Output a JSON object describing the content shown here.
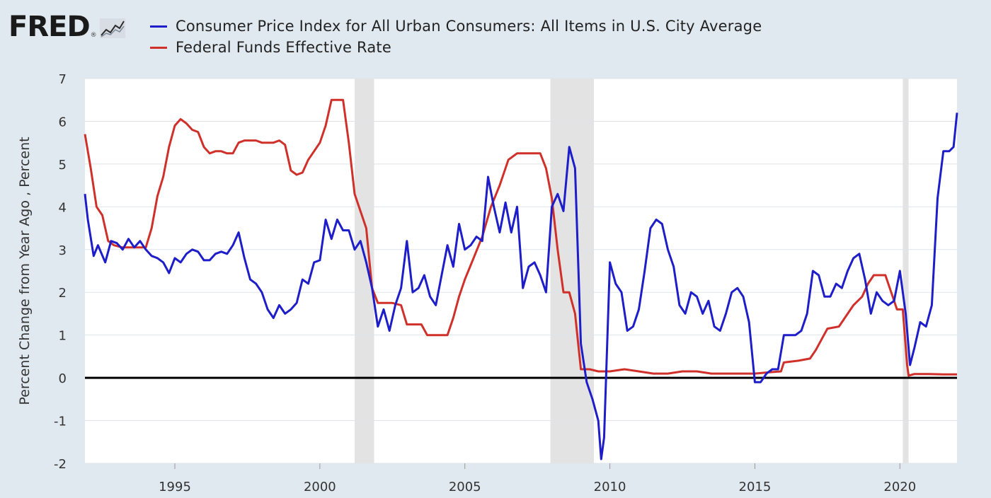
{
  "brand": {
    "logo_text": "FRED",
    "registered_mark": "®"
  },
  "colors": {
    "cpi": "#1d1dc9",
    "fed": "#d0302a",
    "background": "#e1e9f0",
    "plot_background": "#ffffff",
    "recession": "#e3e3e3",
    "zero_line": "#000000",
    "grid": "#dfe3e8"
  },
  "chart_data": {
    "type": "line",
    "ylabel": "Percent Change from Year Ago , Percent",
    "xlabel": "",
    "xlim": [
      1991.9,
      2021.97
    ],
    "ylim": [
      -2,
      7
    ],
    "yticks": [
      -2,
      -1,
      0,
      1,
      2,
      3,
      4,
      5,
      6,
      7
    ],
    "xticks": [
      1995,
      2000,
      2005,
      2010,
      2015,
      2020
    ],
    "grid": "horizontal",
    "legend_position": "top",
    "recessions": [
      [
        2001.2,
        2001.87
      ],
      [
        2007.95,
        2009.45
      ],
      [
        2020.1,
        2020.3
      ]
    ],
    "reference_line": 0,
    "series": [
      {
        "name": "Consumer Price Index for All Urban Consumers: All Items in U.S. City Average",
        "color": "#1d1dc9",
        "points": [
          [
            1991.9,
            4.3
          ],
          [
            1992.0,
            3.7
          ],
          [
            1992.2,
            2.85
          ],
          [
            1992.35,
            3.1
          ],
          [
            1992.6,
            2.7
          ],
          [
            1992.8,
            3.2
          ],
          [
            1993.0,
            3.15
          ],
          [
            1993.2,
            3.0
          ],
          [
            1993.4,
            3.25
          ],
          [
            1993.6,
            3.05
          ],
          [
            1993.8,
            3.2
          ],
          [
            1994.0,
            3.0
          ],
          [
            1994.2,
            2.85
          ],
          [
            1994.4,
            2.8
          ],
          [
            1994.6,
            2.7
          ],
          [
            1994.8,
            2.45
          ],
          [
            1995.0,
            2.8
          ],
          [
            1995.2,
            2.7
          ],
          [
            1995.4,
            2.9
          ],
          [
            1995.6,
            3.0
          ],
          [
            1995.8,
            2.95
          ],
          [
            1996.0,
            2.75
          ],
          [
            1996.2,
            2.75
          ],
          [
            1996.4,
            2.9
          ],
          [
            1996.6,
            2.95
          ],
          [
            1996.8,
            2.9
          ],
          [
            1997.0,
            3.1
          ],
          [
            1997.2,
            3.4
          ],
          [
            1997.4,
            2.8
          ],
          [
            1997.6,
            2.3
          ],
          [
            1997.8,
            2.2
          ],
          [
            1998.0,
            2.0
          ],
          [
            1998.2,
            1.6
          ],
          [
            1998.4,
            1.4
          ],
          [
            1998.6,
            1.7
          ],
          [
            1998.8,
            1.5
          ],
          [
            1999.0,
            1.6
          ],
          [
            1999.2,
            1.75
          ],
          [
            1999.4,
            2.3
          ],
          [
            1999.6,
            2.2
          ],
          [
            1999.8,
            2.7
          ],
          [
            2000.0,
            2.75
          ],
          [
            2000.2,
            3.7
          ],
          [
            2000.4,
            3.25
          ],
          [
            2000.6,
            3.7
          ],
          [
            2000.8,
            3.45
          ],
          [
            2001.0,
            3.45
          ],
          [
            2001.2,
            3.0
          ],
          [
            2001.4,
            3.2
          ],
          [
            2001.6,
            2.7
          ],
          [
            2001.8,
            2.1
          ],
          [
            2002.0,
            1.2
          ],
          [
            2002.2,
            1.6
          ],
          [
            2002.4,
            1.1
          ],
          [
            2002.6,
            1.7
          ],
          [
            2002.8,
            2.1
          ],
          [
            2003.0,
            3.2
          ],
          [
            2003.2,
            2.0
          ],
          [
            2003.4,
            2.1
          ],
          [
            2003.6,
            2.4
          ],
          [
            2003.8,
            1.9
          ],
          [
            2004.0,
            1.7
          ],
          [
            2004.2,
            2.4
          ],
          [
            2004.4,
            3.1
          ],
          [
            2004.6,
            2.6
          ],
          [
            2004.8,
            3.6
          ],
          [
            2005.0,
            3.0
          ],
          [
            2005.2,
            3.1
          ],
          [
            2005.4,
            3.3
          ],
          [
            2005.6,
            3.2
          ],
          [
            2005.8,
            4.7
          ],
          [
            2006.0,
            4.0
          ],
          [
            2006.2,
            3.4
          ],
          [
            2006.4,
            4.1
          ],
          [
            2006.6,
            3.4
          ],
          [
            2006.8,
            4.0
          ],
          [
            2007.0,
            2.1
          ],
          [
            2007.2,
            2.6
          ],
          [
            2007.4,
            2.7
          ],
          [
            2007.6,
            2.4
          ],
          [
            2007.8,
            2.0
          ],
          [
            2008.0,
            4.0
          ],
          [
            2008.2,
            4.3
          ],
          [
            2008.4,
            3.9
          ],
          [
            2008.6,
            5.4
          ],
          [
            2008.8,
            4.9
          ],
          [
            2009.0,
            0.8
          ],
          [
            2009.2,
            -0.1
          ],
          [
            2009.4,
            -0.5
          ],
          [
            2009.6,
            -1.0
          ],
          [
            2009.7,
            -1.9
          ],
          [
            2009.8,
            -1.4
          ],
          [
            2010.0,
            2.7
          ],
          [
            2010.2,
            2.2
          ],
          [
            2010.4,
            2.0
          ],
          [
            2010.6,
            1.1
          ],
          [
            2010.8,
            1.2
          ],
          [
            2011.0,
            1.6
          ],
          [
            2011.2,
            2.5
          ],
          [
            2011.4,
            3.5
          ],
          [
            2011.6,
            3.7
          ],
          [
            2011.8,
            3.6
          ],
          [
            2012.0,
            3.0
          ],
          [
            2012.2,
            2.6
          ],
          [
            2012.4,
            1.7
          ],
          [
            2012.6,
            1.5
          ],
          [
            2012.8,
            2.0
          ],
          [
            2013.0,
            1.9
          ],
          [
            2013.2,
            1.5
          ],
          [
            2013.4,
            1.8
          ],
          [
            2013.6,
            1.2
          ],
          [
            2013.8,
            1.1
          ],
          [
            2014.0,
            1.5
          ],
          [
            2014.2,
            2.0
          ],
          [
            2014.4,
            2.1
          ],
          [
            2014.6,
            1.9
          ],
          [
            2014.8,
            1.3
          ],
          [
            2015.0,
            -0.1
          ],
          [
            2015.2,
            -0.1
          ],
          [
            2015.4,
            0.1
          ],
          [
            2015.6,
            0.2
          ],
          [
            2015.8,
            0.2
          ],
          [
            2016.0,
            1.0
          ],
          [
            2016.2,
            1.0
          ],
          [
            2016.4,
            1.0
          ],
          [
            2016.6,
            1.1
          ],
          [
            2016.8,
            1.5
          ],
          [
            2017.0,
            2.5
          ],
          [
            2017.2,
            2.4
          ],
          [
            2017.4,
            1.9
          ],
          [
            2017.6,
            1.9
          ],
          [
            2017.8,
            2.2
          ],
          [
            2018.0,
            2.1
          ],
          [
            2018.2,
            2.5
          ],
          [
            2018.4,
            2.8
          ],
          [
            2018.6,
            2.9
          ],
          [
            2018.8,
            2.3
          ],
          [
            2019.0,
            1.5
          ],
          [
            2019.2,
            2.0
          ],
          [
            2019.4,
            1.8
          ],
          [
            2019.6,
            1.7
          ],
          [
            2019.8,
            1.8
          ],
          [
            2020.0,
            2.5
          ],
          [
            2020.2,
            1.5
          ],
          [
            2020.35,
            0.3
          ],
          [
            2020.5,
            0.7
          ],
          [
            2020.7,
            1.3
          ],
          [
            2020.9,
            1.2
          ],
          [
            2021.1,
            1.7
          ],
          [
            2021.3,
            4.2
          ],
          [
            2021.5,
            5.3
          ],
          [
            2021.7,
            5.3
          ],
          [
            2021.85,
            5.4
          ],
          [
            2021.97,
            6.2
          ]
        ]
      },
      {
        "name": "Federal Funds Effective Rate",
        "color": "#d0302a",
        "points": [
          [
            1991.9,
            5.7
          ],
          [
            1992.1,
            4.9
          ],
          [
            1992.3,
            4.0
          ],
          [
            1992.5,
            3.8
          ],
          [
            1992.7,
            3.2
          ],
          [
            1992.9,
            3.1
          ],
          [
            1993.2,
            3.05
          ],
          [
            1993.5,
            3.05
          ],
          [
            1993.8,
            3.05
          ],
          [
            1994.0,
            3.05
          ],
          [
            1994.2,
            3.5
          ],
          [
            1994.4,
            4.25
          ],
          [
            1994.6,
            4.7
          ],
          [
            1994.8,
            5.4
          ],
          [
            1995.0,
            5.9
          ],
          [
            1995.2,
            6.05
          ],
          [
            1995.4,
            5.95
          ],
          [
            1995.6,
            5.8
          ],
          [
            1995.8,
            5.75
          ],
          [
            1996.0,
            5.4
          ],
          [
            1996.2,
            5.25
          ],
          [
            1996.4,
            5.3
          ],
          [
            1996.6,
            5.3
          ],
          [
            1996.8,
            5.25
          ],
          [
            1997.0,
            5.25
          ],
          [
            1997.2,
            5.5
          ],
          [
            1997.4,
            5.55
          ],
          [
            1997.6,
            5.55
          ],
          [
            1997.8,
            5.55
          ],
          [
            1998.0,
            5.5
          ],
          [
            1998.2,
            5.5
          ],
          [
            1998.4,
            5.5
          ],
          [
            1998.6,
            5.55
          ],
          [
            1998.8,
            5.45
          ],
          [
            1999.0,
            4.85
          ],
          [
            1999.2,
            4.75
          ],
          [
            1999.4,
            4.8
          ],
          [
            1999.6,
            5.1
          ],
          [
            1999.8,
            5.3
          ],
          [
            2000.0,
            5.5
          ],
          [
            2000.2,
            5.9
          ],
          [
            2000.4,
            6.5
          ],
          [
            2000.6,
            6.5
          ],
          [
            2000.8,
            6.5
          ],
          [
            2001.0,
            5.5
          ],
          [
            2001.2,
            4.3
          ],
          [
            2001.4,
            3.9
          ],
          [
            2001.6,
            3.5
          ],
          [
            2001.8,
            2.1
          ],
          [
            2002.0,
            1.75
          ],
          [
            2002.5,
            1.75
          ],
          [
            2002.8,
            1.7
          ],
          [
            2003.0,
            1.25
          ],
          [
            2003.5,
            1.25
          ],
          [
            2003.7,
            1.0
          ],
          [
            2004.0,
            1.0
          ],
          [
            2004.4,
            1.0
          ],
          [
            2004.6,
            1.4
          ],
          [
            2004.8,
            1.9
          ],
          [
            2005.0,
            2.3
          ],
          [
            2005.3,
            2.8
          ],
          [
            2005.6,
            3.3
          ],
          [
            2005.9,
            4.0
          ],
          [
            2006.2,
            4.5
          ],
          [
            2006.5,
            5.1
          ],
          [
            2006.8,
            5.25
          ],
          [
            2007.0,
            5.25
          ],
          [
            2007.3,
            5.25
          ],
          [
            2007.6,
            5.25
          ],
          [
            2007.8,
            4.9
          ],
          [
            2008.0,
            4.2
          ],
          [
            2008.2,
            3.0
          ],
          [
            2008.4,
            2.0
          ],
          [
            2008.6,
            2.0
          ],
          [
            2008.8,
            1.5
          ],
          [
            2009.0,
            0.2
          ],
          [
            2009.3,
            0.2
          ],
          [
            2009.6,
            0.15
          ],
          [
            2010.0,
            0.15
          ],
          [
            2010.5,
            0.2
          ],
          [
            2011.0,
            0.15
          ],
          [
            2011.5,
            0.1
          ],
          [
            2012.0,
            0.1
          ],
          [
            2012.5,
            0.15
          ],
          [
            2013.0,
            0.15
          ],
          [
            2013.5,
            0.1
          ],
          [
            2014.0,
            0.1
          ],
          [
            2014.5,
            0.1
          ],
          [
            2015.0,
            0.1
          ],
          [
            2015.5,
            0.13
          ],
          [
            2015.9,
            0.15
          ],
          [
            2016.0,
            0.36
          ],
          [
            2016.5,
            0.4
          ],
          [
            2016.9,
            0.45
          ],
          [
            2017.1,
            0.65
          ],
          [
            2017.3,
            0.9
          ],
          [
            2017.5,
            1.15
          ],
          [
            2017.9,
            1.2
          ],
          [
            2018.1,
            1.4
          ],
          [
            2018.4,
            1.7
          ],
          [
            2018.7,
            1.9
          ],
          [
            2018.9,
            2.2
          ],
          [
            2019.1,
            2.4
          ],
          [
            2019.5,
            2.4
          ],
          [
            2019.7,
            2.0
          ],
          [
            2019.9,
            1.6
          ],
          [
            2020.1,
            1.6
          ],
          [
            2020.25,
            0.3
          ],
          [
            2020.3,
            0.05
          ],
          [
            2020.5,
            0.09
          ],
          [
            2021.0,
            0.09
          ],
          [
            2021.5,
            0.08
          ],
          [
            2021.97,
            0.08
          ]
        ]
      }
    ]
  }
}
